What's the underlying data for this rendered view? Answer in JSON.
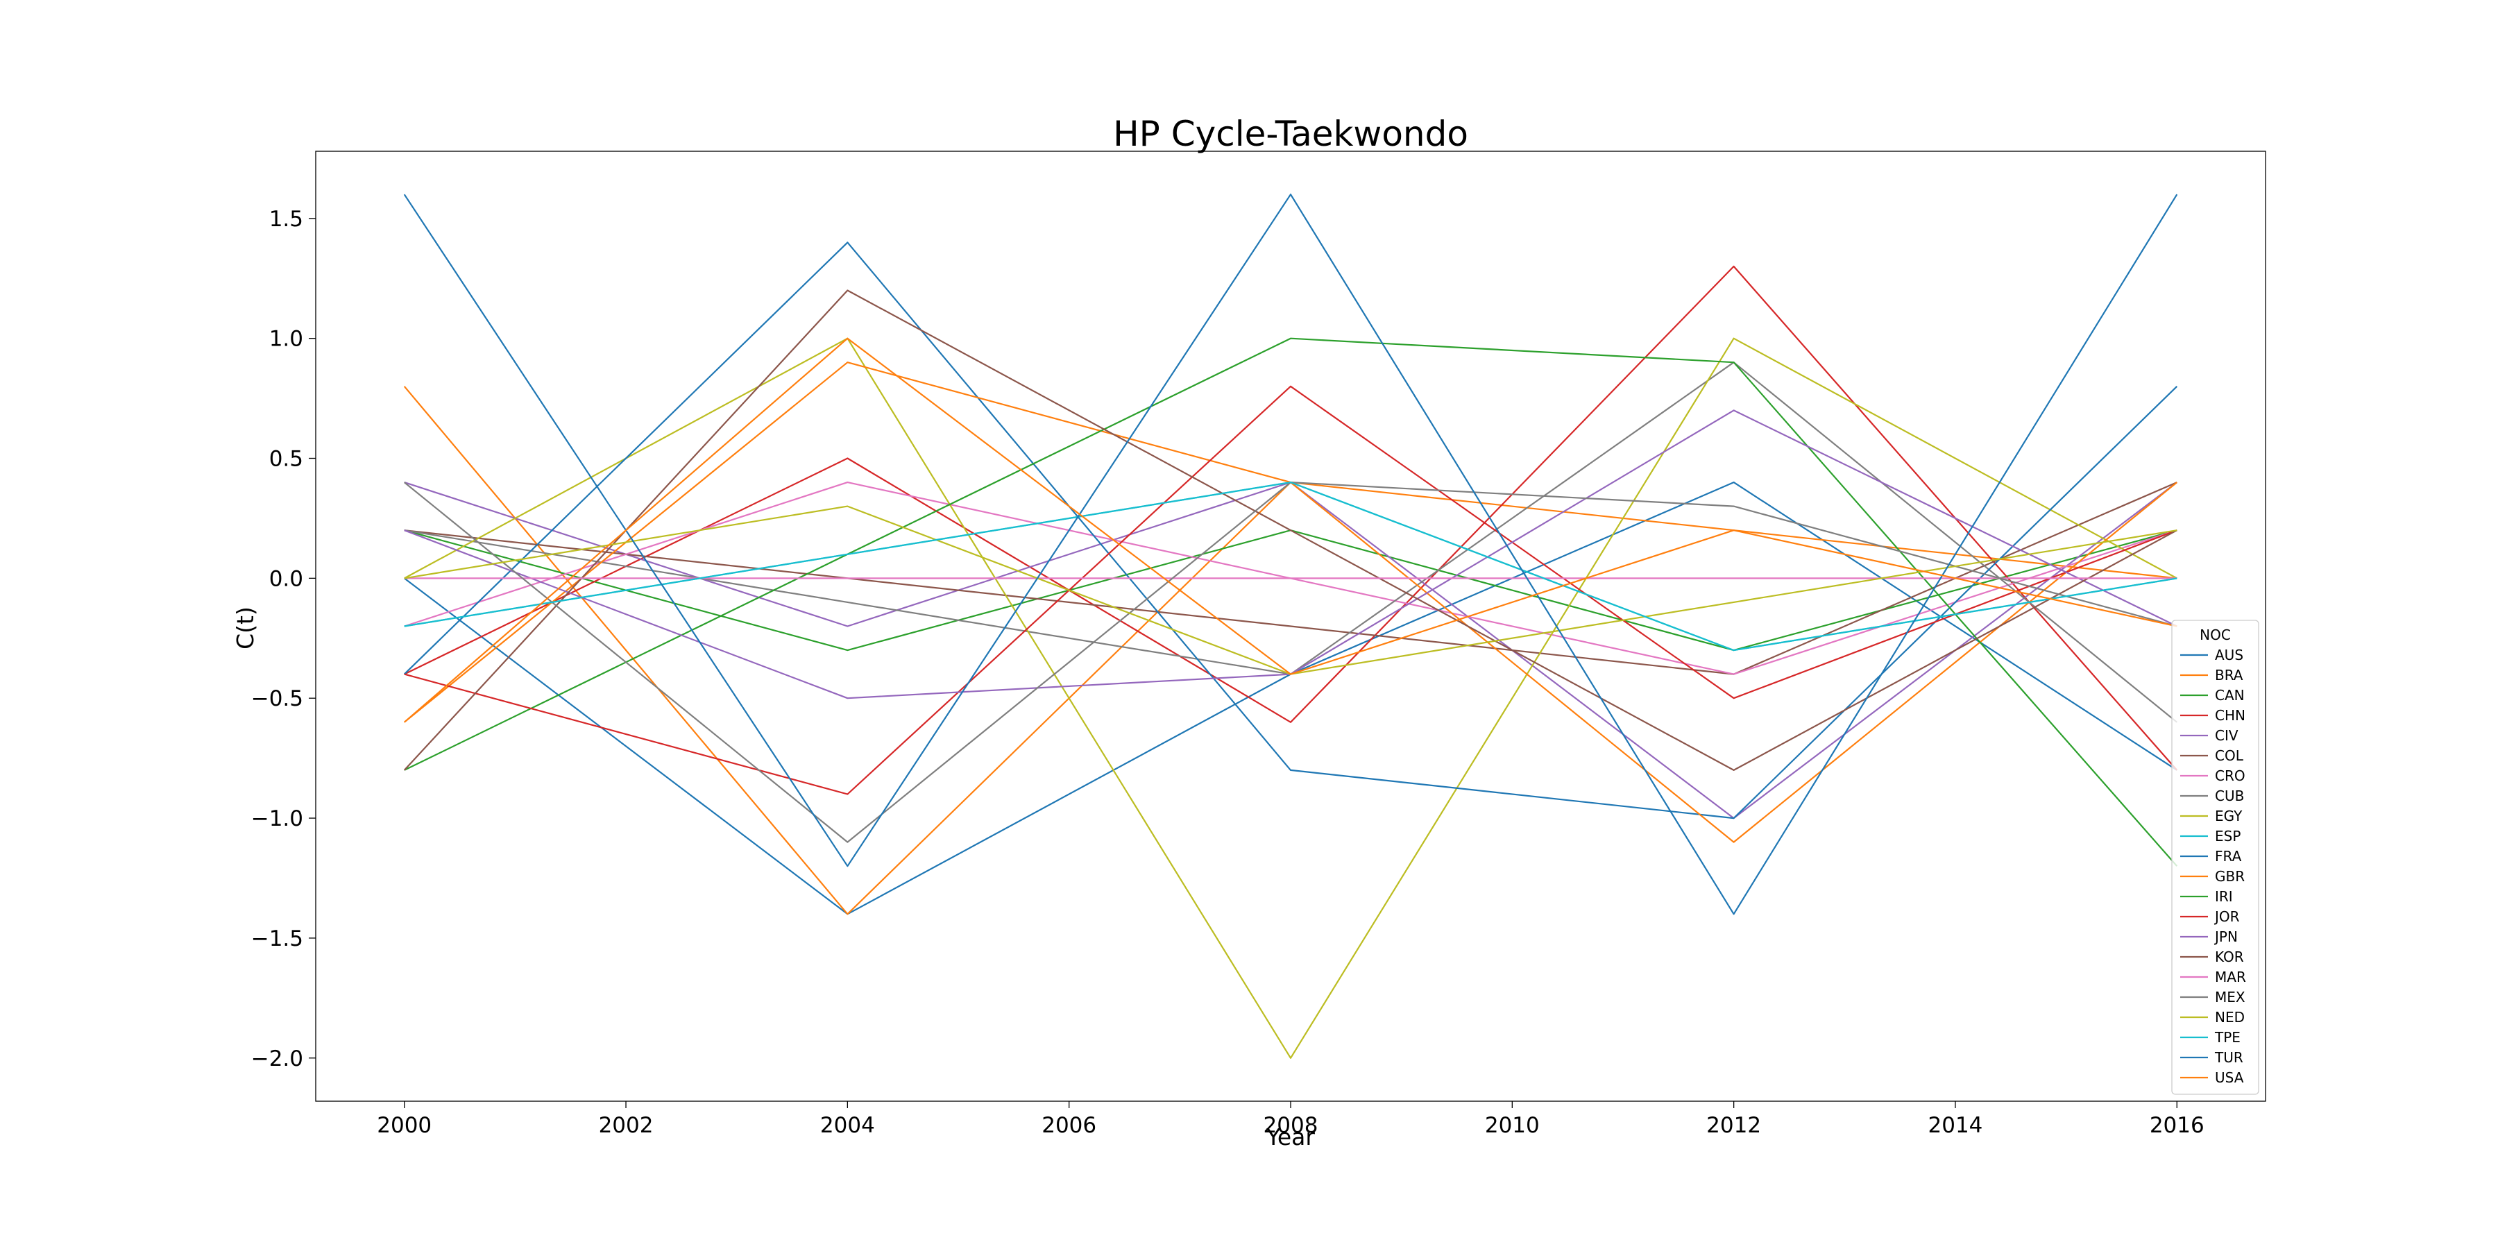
{
  "chart_data": {
    "type": "line",
    "title": "HP Cycle-Taekwondo",
    "xlabel": "Year",
    "ylabel": "C(t)",
    "x": [
      2000,
      2004,
      2008,
      2012,
      2016
    ],
    "xlim": [
      1999.2,
      2016.8
    ],
    "ylim": [
      -2.18,
      1.78
    ],
    "xticks": [
      "2000",
      "2002",
      "2004",
      "2006",
      "2008",
      "2010",
      "2012",
      "2014",
      "2016"
    ],
    "yticks": [
      "1.5",
      "1.0",
      "0.5",
      "0.0",
      "−0.5",
      "−1.0",
      "−1.5",
      "−2.0"
    ],
    "grid": false,
    "legend": {
      "title": "NOC",
      "placement": "lower-right"
    },
    "series": [
      {
        "name": "AUS",
        "color": "#1f77b4",
        "values": [
          0.0,
          -1.4,
          -0.4,
          0.4,
          -0.8
        ]
      },
      {
        "name": "BRA",
        "color": "#ff7f0e",
        "values": [
          0.8,
          -1.4,
          0.4,
          0.2,
          0.0
        ]
      },
      {
        "name": "CAN",
        "color": "#2ca02c",
        "values": [
          0.2,
          -0.3,
          0.2,
          -0.3,
          0.2
        ]
      },
      {
        "name": "CHN",
        "color": "#d62728",
        "values": [
          -0.4,
          0.5,
          -0.6,
          1.3,
          -0.8
        ]
      },
      {
        "name": "CIV",
        "color": "#9467bd",
        "values": [
          0.4,
          -0.2,
          0.4,
          -1.0,
          0.4
        ]
      },
      {
        "name": "COL",
        "color": "#8c564b",
        "values": [
          0.2,
          0.0,
          -0.2,
          -0.4,
          0.4
        ]
      },
      {
        "name": "CRO",
        "color": "#e377c2",
        "values": [
          -0.2,
          0.4,
          0.0,
          -0.4,
          0.2
        ]
      },
      {
        "name": "CUB",
        "color": "#7f7f7f",
        "values": [
          0.2,
          -0.1,
          -0.4,
          0.9,
          -0.6
        ]
      },
      {
        "name": "EGY",
        "color": "#bcbd22",
        "values": [
          0.0,
          1.0,
          -2.0,
          1.0,
          0.0
        ]
      },
      {
        "name": "ESP",
        "color": "#17becf",
        "values": [
          -0.2,
          0.1,
          0.4,
          -0.3,
          0.0
        ]
      },
      {
        "name": "FRA",
        "color": "#1f77b4",
        "values": [
          -0.4,
          1.4,
          -0.8,
          -1.0,
          0.8
        ]
      },
      {
        "name": "GBR",
        "color": "#ff7f0e",
        "values": [
          -0.6,
          0.9,
          0.4,
          -1.1,
          0.4
        ]
      },
      {
        "name": "IRI",
        "color": "#2ca02c",
        "values": [
          -0.8,
          0.1,
          1.0,
          0.9,
          -1.2
        ]
      },
      {
        "name": "JOR",
        "color": "#d62728",
        "values": [
          -0.4,
          -0.9,
          0.8,
          -0.5,
          0.2
        ]
      },
      {
        "name": "JPN",
        "color": "#9467bd",
        "values": [
          0.2,
          -0.5,
          -0.4,
          0.7,
          -0.2
        ]
      },
      {
        "name": "KOR",
        "color": "#8c564b",
        "values": [
          -0.8,
          1.2,
          0.2,
          -0.8,
          0.2
        ]
      },
      {
        "name": "MAR",
        "color": "#e377c2",
        "values": [
          0.0,
          0.0,
          0.0,
          0.0,
          0.0
        ]
      },
      {
        "name": "MEX",
        "color": "#7f7f7f",
        "values": [
          0.4,
          -1.1,
          0.4,
          0.3,
          -0.2
        ]
      },
      {
        "name": "NED",
        "color": "#bcbd22",
        "values": [
          0.0,
          0.3,
          -0.4,
          -0.1,
          0.2
        ]
      },
      {
        "name": "TPE",
        "color": "#17becf",
        "values": [
          -0.2,
          0.1,
          0.4,
          -0.3,
          0.0
        ]
      },
      {
        "name": "TUR",
        "color": "#1f77b4",
        "values": [
          1.6,
          -1.2,
          1.6,
          -1.4,
          1.6
        ]
      },
      {
        "name": "USA",
        "color": "#ff7f0e",
        "values": [
          -0.6,
          1.0,
          -0.4,
          0.2,
          -0.2
        ]
      }
    ]
  }
}
